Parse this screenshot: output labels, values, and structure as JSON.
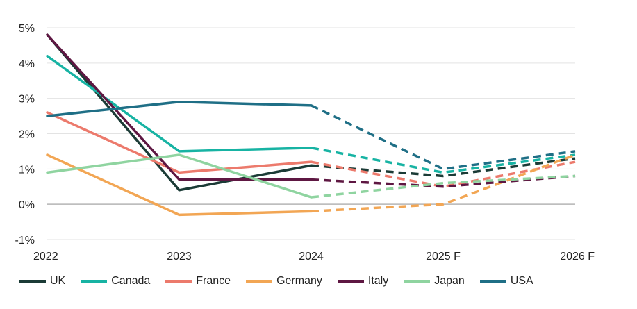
{
  "chart_data": {
    "type": "line",
    "categories": [
      "2022",
      "2023",
      "2024",
      "2025 F",
      "2026 F"
    ],
    "ylim": [
      -1,
      5
    ],
    "yticks": [
      -1,
      0,
      1,
      2,
      3,
      4,
      5
    ],
    "ytick_labels": [
      "-1%",
      "0%",
      "1%",
      "2%",
      "3%",
      "4%",
      "5%"
    ],
    "grid": true,
    "legend_position": "bottom",
    "actual_points": 3,
    "series": [
      {
        "name": "UK",
        "color": "#1b3b36",
        "values": [
          4.8,
          0.4,
          1.1,
          0.8,
          1.3
        ]
      },
      {
        "name": "Canada",
        "color": "#17b3a3",
        "values": [
          4.2,
          1.5,
          1.6,
          0.9,
          1.4
        ]
      },
      {
        "name": "France",
        "color": "#ec7a6c",
        "values": [
          2.6,
          0.9,
          1.2,
          0.5,
          1.2
        ]
      },
      {
        "name": "Germany",
        "color": "#f2a654",
        "values": [
          1.4,
          -0.3,
          -0.2,
          0.0,
          1.4
        ]
      },
      {
        "name": "Italy",
        "color": "#5e1742",
        "values": [
          4.8,
          0.7,
          0.7,
          0.5,
          0.8
        ]
      },
      {
        "name": "Japan",
        "color": "#8fd4a0",
        "values": [
          0.9,
          1.4,
          0.2,
          0.6,
          0.8
        ]
      },
      {
        "name": "USA",
        "color": "#1f6f86",
        "values": [
          2.5,
          2.9,
          2.8,
          1.0,
          1.5
        ]
      }
    ]
  }
}
